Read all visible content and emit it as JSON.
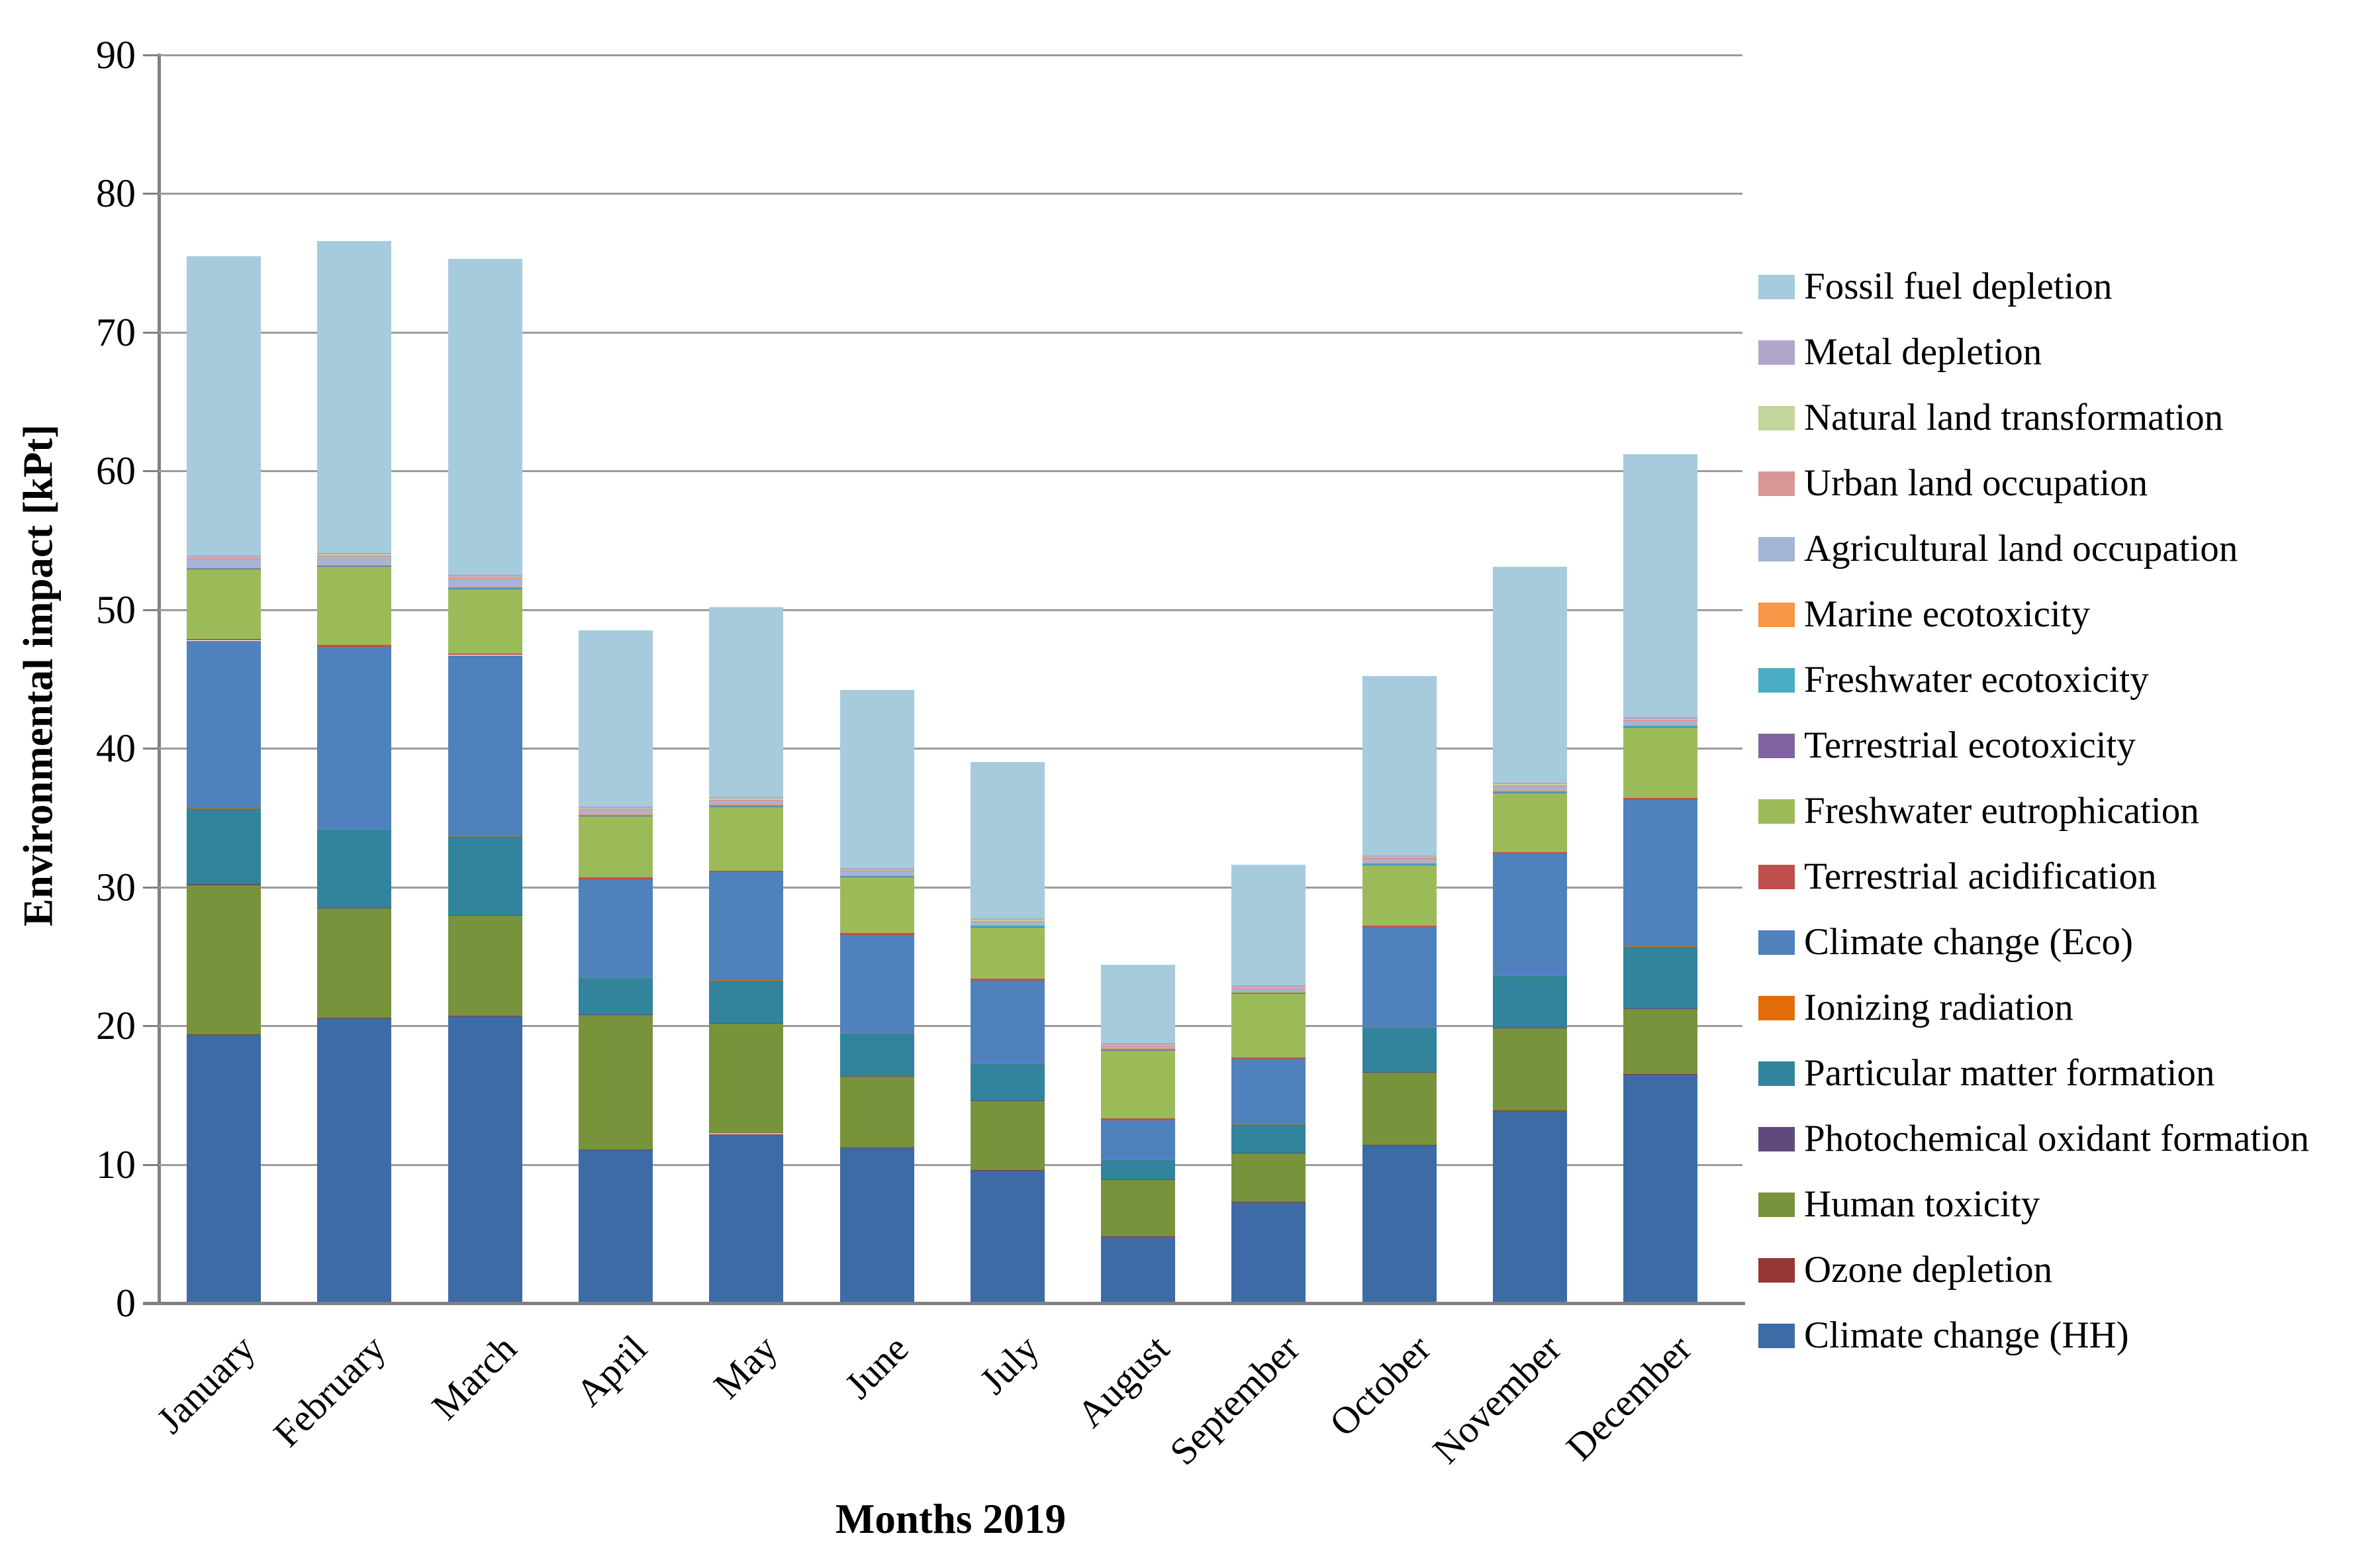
{
  "figure": {
    "background_color": "#ffffff",
    "gridline_color": "#9b9b9b",
    "axis_line_color": "#808080",
    "text_color": "#000000"
  },
  "chart_data": {
    "type": "bar",
    "stacked": true,
    "title": "",
    "xlabel": "Months 2019",
    "ylabel": "Environmental impact [kPt]",
    "ylim": [
      0,
      90
    ],
    "yticks": [
      0,
      10,
      20,
      30,
      40,
      50,
      60,
      70,
      80,
      90
    ],
    "grid": "horizontal",
    "legend_position": "right",
    "legend_order": "top-is-top-of-stack",
    "categories": [
      "January",
      "February",
      "March",
      "April",
      "May",
      "June",
      "July",
      "August",
      "September",
      "October",
      "November",
      "December"
    ],
    "series": [
      {
        "name": "Climate change (HH)",
        "color": "#3D6BA5",
        "values": [
          19.38,
          20.58,
          20.68,
          11.08,
          12.18,
          11.18,
          9.58,
          4.78,
          7.28,
          11.38,
          13.88,
          16.48
        ]
      },
      {
        "name": "Ozone depletion",
        "color": "#953734",
        "values": [
          0.02,
          0.02,
          0.02,
          0.02,
          0.02,
          0.02,
          0.02,
          0.02,
          0.02,
          0.02,
          0.02,
          0.02
        ]
      },
      {
        "name": "Human toxicity",
        "color": "#77933C",
        "values": [
          10.75,
          7.85,
          7.25,
          9.65,
          7.95,
          5.15,
          4.95,
          4.1,
          3.5,
          5.2,
          5.9,
          4.7
        ]
      },
      {
        "name": "Photochemical oxidant formation",
        "color": "#604A7B",
        "values": [
          0.05,
          0.05,
          0.05,
          0.05,
          0.05,
          0.05,
          0.05,
          0.05,
          0.05,
          0.05,
          0.05,
          0.05
        ]
      },
      {
        "name": "Particular matter formation",
        "color": "#31849B",
        "values": [
          5.46,
          5.66,
          5.66,
          2.66,
          3.06,
          3.06,
          2.66,
          1.35,
          2.05,
          3.21,
          3.75,
          4.45
        ]
      },
      {
        "name": "Ionizing radiation",
        "color": "#E36C0A",
        "values": [
          0.04,
          0.04,
          0.04,
          0.04,
          0.04,
          0.04,
          0.04,
          0.04,
          0.04,
          0.04,
          0.04,
          0.04
        ]
      },
      {
        "name": "Climate change (Eco)",
        "color": "#4F81BD",
        "values": [
          12.07,
          13.12,
          13.02,
          7.07,
          7.77,
          7.07,
          5.97,
          2.86,
          4.66,
          7.2,
          8.76,
          10.56
        ]
      },
      {
        "name": "Terrestrial acidification",
        "color": "#C0504D",
        "values": [
          0.13,
          0.13,
          0.13,
          0.13,
          0.13,
          0.13,
          0.13,
          0.13,
          0.13,
          0.13,
          0.13,
          0.13
        ]
      },
      {
        "name": "Freshwater eutrophication",
        "color": "#9BBB59",
        "values": [
          5.0,
          5.65,
          4.65,
          4.4,
          4.6,
          4.0,
          3.7,
          4.87,
          4.57,
          4.37,
          4.27,
          5.07
        ]
      },
      {
        "name": "Terrestrial ecotoxicity",
        "color": "#8064A2",
        "values": [
          0.03,
          0.03,
          0.03,
          0.03,
          0.03,
          0.03,
          0.03,
          0.03,
          0.03,
          0.03,
          0.03,
          0.03
        ]
      },
      {
        "name": "Freshwater ecotoxicity",
        "color": "#4BACC6",
        "values": [
          0.1,
          0.1,
          0.1,
          0.1,
          0.1,
          0.1,
          0.1,
          0.1,
          0.1,
          0.1,
          0.1,
          0.1
        ]
      },
      {
        "name": "Marine ecotoxicity",
        "color": "#F79646",
        "values": [
          0.03,
          0.03,
          0.03,
          0.03,
          0.03,
          0.03,
          0.03,
          0.03,
          0.03,
          0.03,
          0.03,
          0.03
        ]
      },
      {
        "name": "Agricultural land occupation",
        "color": "#A4B5D8",
        "values": [
          0.55,
          0.55,
          0.55,
          0.25,
          0.25,
          0.2,
          0.2,
          0.1,
          0.15,
          0.25,
          0.3,
          0.3
        ]
      },
      {
        "name": "Urban land occupation",
        "color": "#D99694",
        "values": [
          0.1,
          0.1,
          0.1,
          0.1,
          0.1,
          0.1,
          0.1,
          0.1,
          0.1,
          0.1,
          0.1,
          0.1
        ]
      },
      {
        "name": "Natural land transformation",
        "color": "#C3D69B",
        "values": [
          0.07,
          0.07,
          0.07,
          0.07,
          0.07,
          0.07,
          0.07,
          0.07,
          0.07,
          0.07,
          0.07,
          0.07
        ]
      },
      {
        "name": "Metal depletion",
        "color": "#B2A5CB",
        "values": [
          0.12,
          0.12,
          0.12,
          0.12,
          0.12,
          0.12,
          0.12,
          0.12,
          0.12,
          0.12,
          0.12,
          0.12
        ]
      },
      {
        "name": "Fossil fuel depletion",
        "color": "#A5CBDD",
        "values": [
          21.6,
          22.5,
          22.8,
          12.7,
          13.7,
          12.85,
          11.25,
          5.65,
          8.7,
          12.9,
          15.55,
          18.95
        ]
      }
    ],
    "totals": [
      75.5,
      76.6,
      75.3,
      48.5,
      50.2,
      44.2,
      39.0,
      24.4,
      31.6,
      45.2,
      53.1,
      61.2
    ]
  }
}
